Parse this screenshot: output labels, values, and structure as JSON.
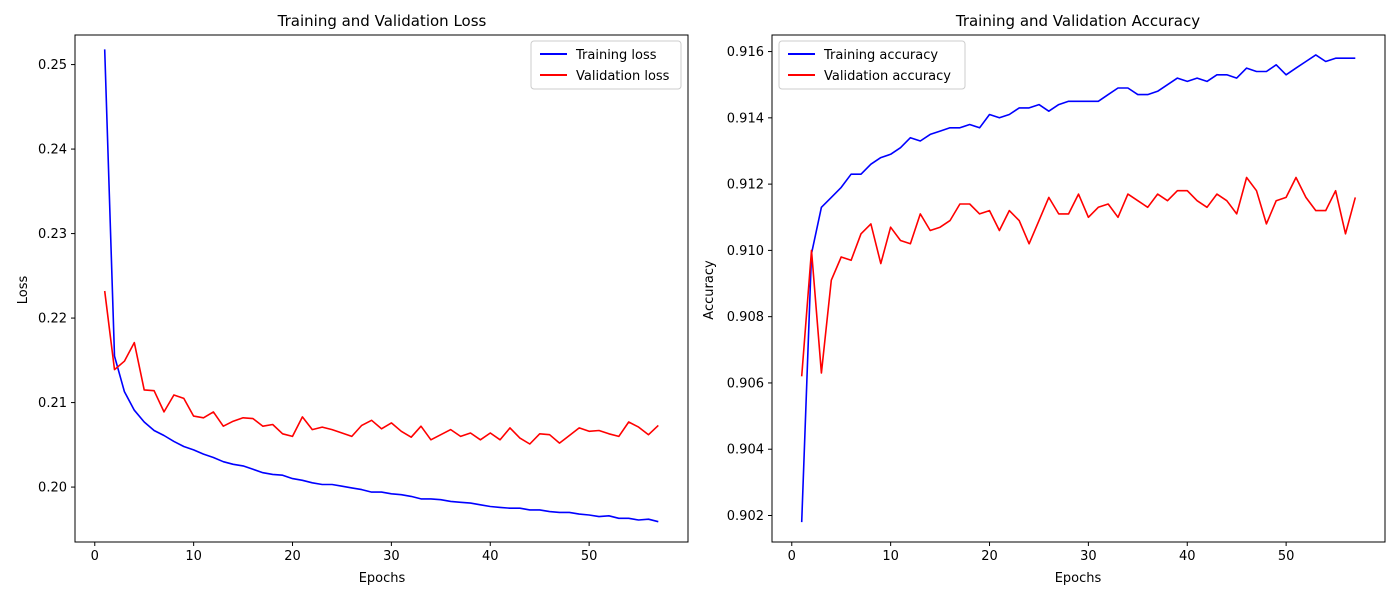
{
  "chart_data": [
    {
      "type": "line",
      "title": "Training and Validation Loss",
      "xlabel": "Epochs",
      "ylabel": "Loss",
      "xlim": [
        -2,
        60
      ],
      "ylim": [
        0.1935,
        0.2535
      ],
      "xticks": [
        0,
        10,
        20,
        30,
        40,
        50
      ],
      "yticks": [
        0.2,
        0.21,
        0.22,
        0.23,
        0.24,
        0.25
      ],
      "ytick_format": 2,
      "legend_position": "top-right",
      "grid": false,
      "x": [
        1,
        2,
        3,
        4,
        5,
        6,
        7,
        8,
        9,
        10,
        11,
        12,
        13,
        14,
        15,
        16,
        17,
        18,
        19,
        20,
        21,
        22,
        23,
        24,
        25,
        26,
        27,
        28,
        29,
        30,
        31,
        32,
        33,
        34,
        35,
        36,
        37,
        38,
        39,
        40,
        41,
        42,
        43,
        44,
        45,
        46,
        47,
        48,
        49,
        50,
        51,
        52,
        53,
        54,
        55,
        56,
        57
      ],
      "series": [
        {
          "name": "Training loss",
          "color": "#0000ff",
          "values": [
            0.2518,
            0.2155,
            0.2113,
            0.2091,
            0.2077,
            0.2067,
            0.2061,
            0.2054,
            0.2048,
            0.2044,
            0.2039,
            0.2035,
            0.203,
            0.2027,
            0.2025,
            0.2021,
            0.2017,
            0.2015,
            0.2014,
            0.201,
            0.2008,
            0.2005,
            0.2003,
            0.2003,
            0.2001,
            0.1999,
            0.1997,
            0.1994,
            0.1994,
            0.1992,
            0.1991,
            0.1989,
            0.1986,
            0.1986,
            0.1985,
            0.1983,
            0.1982,
            0.1981,
            0.1979,
            0.1977,
            0.1976,
            0.1975,
            0.1975,
            0.1973,
            0.1973,
            0.1971,
            0.197,
            0.197,
            0.1968,
            0.1967,
            0.1965,
            0.1966,
            0.1963,
            0.1963,
            0.1961,
            0.1962,
            0.1959
          ]
        },
        {
          "name": "Validation loss",
          "color": "#ff0000",
          "values": [
            0.2232,
            0.2139,
            0.2149,
            0.2171,
            0.2115,
            0.2114,
            0.2089,
            0.2109,
            0.2105,
            0.2084,
            0.2082,
            0.2089,
            0.2072,
            0.2078,
            0.2082,
            0.2081,
            0.2072,
            0.2074,
            0.2063,
            0.206,
            0.2083,
            0.2068,
            0.2071,
            0.2068,
            0.2064,
            0.206,
            0.2073,
            0.2079,
            0.2069,
            0.2076,
            0.2066,
            0.2059,
            0.2072,
            0.2056,
            0.2062,
            0.2068,
            0.206,
            0.2064,
            0.2056,
            0.2064,
            0.2056,
            0.207,
            0.2058,
            0.2051,
            0.2063,
            0.2062,
            0.2052,
            0.2061,
            0.207,
            0.2066,
            0.2067,
            0.2063,
            0.206,
            0.2077,
            0.2071,
            0.2062,
            0.2073
          ]
        }
      ]
    },
    {
      "type": "line",
      "title": "Training and Validation Accuracy",
      "xlabel": "Epochs",
      "ylabel": "Accuracy",
      "xlim": [
        -2,
        60
      ],
      "ylim": [
        0.9012,
        0.9165
      ],
      "xticks": [
        0,
        10,
        20,
        30,
        40,
        50
      ],
      "yticks": [
        0.902,
        0.904,
        0.906,
        0.908,
        0.91,
        0.912,
        0.914,
        0.916
      ],
      "ytick_format": 3,
      "legend_position": "top-left",
      "grid": false,
      "x": [
        1,
        2,
        3,
        4,
        5,
        6,
        7,
        8,
        9,
        10,
        11,
        12,
        13,
        14,
        15,
        16,
        17,
        18,
        19,
        20,
        21,
        22,
        23,
        24,
        25,
        26,
        27,
        28,
        29,
        30,
        31,
        32,
        33,
        34,
        35,
        36,
        37,
        38,
        39,
        40,
        41,
        42,
        43,
        44,
        45,
        46,
        47,
        48,
        49,
        50,
        51,
        52,
        53,
        54,
        55,
        56,
        57
      ],
      "series": [
        {
          "name": "Training accuracy",
          "color": "#0000ff",
          "values": [
            0.9018,
            0.9099,
            0.9113,
            0.9116,
            0.9119,
            0.9123,
            0.9123,
            0.9126,
            0.9128,
            0.9129,
            0.9131,
            0.9134,
            0.9133,
            0.9135,
            0.9136,
            0.9137,
            0.9137,
            0.9138,
            0.9137,
            0.9141,
            0.914,
            0.9141,
            0.9143,
            0.9143,
            0.9144,
            0.9142,
            0.9144,
            0.9145,
            0.9145,
            0.9145,
            0.9145,
            0.9147,
            0.9149,
            0.9149,
            0.9147,
            0.9147,
            0.9148,
            0.915,
            0.9152,
            0.9151,
            0.9152,
            0.9151,
            0.9153,
            0.9153,
            0.9152,
            0.9155,
            0.9154,
            0.9154,
            0.9156,
            0.9153,
            0.9155,
            0.9157,
            0.9159,
            0.9157,
            0.9158,
            0.9158,
            0.9158
          ]
        },
        {
          "name": "Validation accuracy",
          "color": "#ff0000",
          "values": [
            0.9062,
            0.91,
            0.9063,
            0.9091,
            0.9098,
            0.9097,
            0.9105,
            0.9108,
            0.9096,
            0.9107,
            0.9103,
            0.9102,
            0.9111,
            0.9106,
            0.9107,
            0.9109,
            0.9114,
            0.9114,
            0.9111,
            0.9112,
            0.9106,
            0.9112,
            0.9109,
            0.9102,
            0.9109,
            0.9116,
            0.9111,
            0.9111,
            0.9117,
            0.911,
            0.9113,
            0.9114,
            0.911,
            0.9117,
            0.9115,
            0.9113,
            0.9117,
            0.9115,
            0.9118,
            0.9118,
            0.9115,
            0.9113,
            0.9117,
            0.9115,
            0.9111,
            0.9122,
            0.9118,
            0.9108,
            0.9115,
            0.9116,
            0.9122,
            0.9116,
            0.9112,
            0.9112,
            0.9118,
            0.9105,
            0.9116
          ]
        }
      ]
    }
  ]
}
